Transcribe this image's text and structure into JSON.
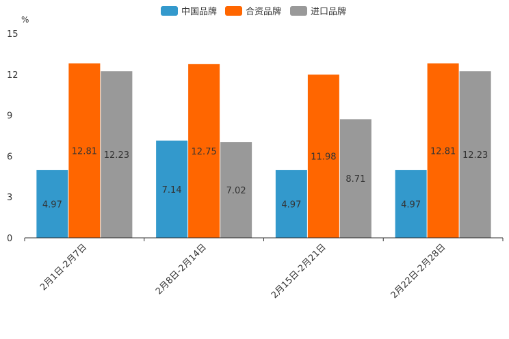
{
  "chart_data": {
    "type": "bar",
    "title": "",
    "xlabel": "",
    "ylabel": "%",
    "ylim": [
      0,
      15
    ],
    "yticks": [
      0,
      3,
      6,
      9,
      12,
      15
    ],
    "grid": false,
    "legend_position": "top-center",
    "categories": [
      "2月1日-2月7日",
      "2月8日-2月14日",
      "2月15日-2月21日",
      "2月22日-2月28日"
    ],
    "series": [
      {
        "name": "中国品牌",
        "color": "#3399cc",
        "values": [
          4.97,
          7.14,
          4.97,
          4.97
        ],
        "labels": [
          "4.97",
          "7.14",
          "4.97",
          "4.97"
        ]
      },
      {
        "name": "合资品牌",
        "color": "#ff6600",
        "values": [
          12.81,
          12.75,
          11.98,
          12.81
        ],
        "labels": [
          "12.81",
          "12.75",
          "11.98",
          "12.81"
        ]
      },
      {
        "name": "进口品牌",
        "color": "#999999",
        "values": [
          12.23,
          7.02,
          8.71,
          12.23
        ],
        "labels": [
          "12.23",
          "7.02",
          "8.71",
          "12.23"
        ]
      }
    ]
  }
}
